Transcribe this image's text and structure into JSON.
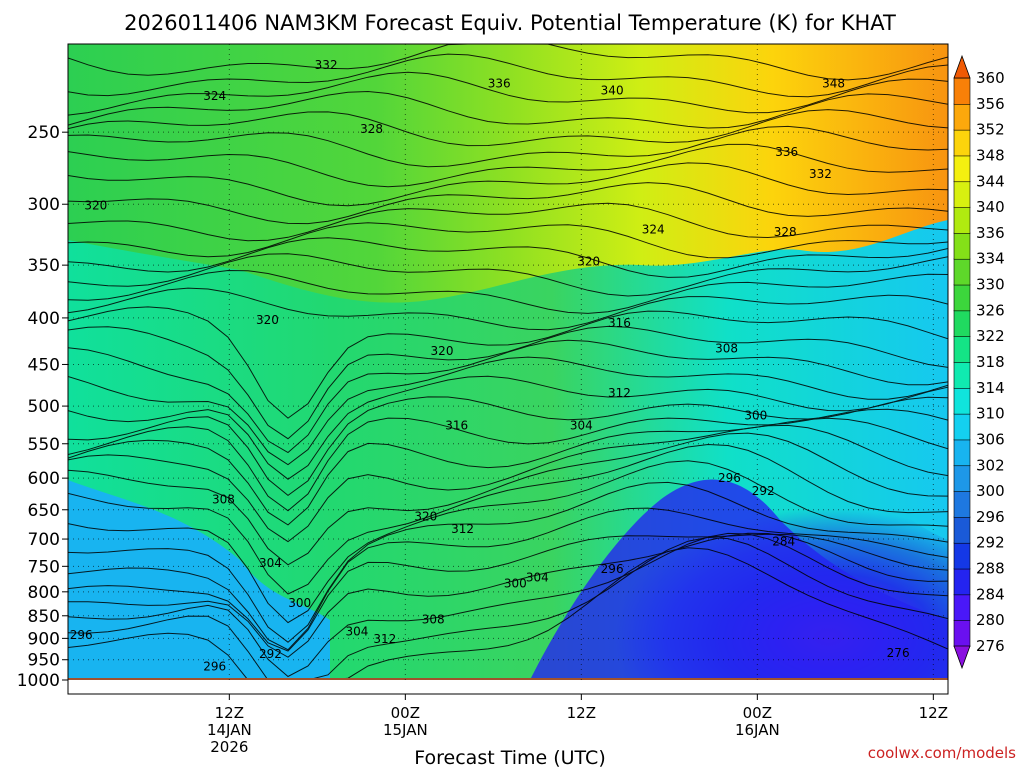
{
  "chart_data": {
    "type": "contour",
    "title": "2026011406 NAM3KM Forecast Equiv. Potential Temperature (K) for KHAT",
    "xlabel": "Forecast Time (UTC)",
    "ylabel": "",
    "credit": "coolwx.com/models",
    "y_axis": {
      "scale": "log",
      "direction": "inverted",
      "top_value": 200,
      "bottom_value": 1000,
      "ticks": [
        250,
        300,
        350,
        400,
        450,
        500,
        550,
        600,
        650,
        700,
        750,
        800,
        850,
        900,
        950,
        1000
      ],
      "tick_labels": [
        "250",
        "300",
        "350",
        "400",
        "450",
        "500",
        "550",
        "600",
        "650",
        "700",
        "750",
        "800",
        "850",
        "900",
        "950",
        "1000"
      ]
    },
    "x_axis": {
      "range_hours": [
        -5,
        55
      ],
      "ticks": [
        {
          "hour": 6,
          "lines": [
            "12Z",
            "14JAN",
            "2026"
          ]
        },
        {
          "hour": 18,
          "lines": [
            "00Z",
            "15JAN"
          ]
        },
        {
          "hour": 30,
          "lines": [
            "12Z"
          ]
        },
        {
          "hour": 42,
          "lines": [
            "00Z",
            "16JAN"
          ]
        },
        {
          "hour": 54,
          "lines": [
            "12Z"
          ]
        }
      ]
    },
    "colorbar": {
      "levels": [
        276,
        280,
        284,
        288,
        292,
        296,
        300,
        302,
        306,
        310,
        314,
        318,
        322,
        326,
        330,
        334,
        336,
        340,
        344,
        348,
        352,
        356,
        360
      ],
      "colors": [
        "#8a10e0",
        "#6a10f0",
        "#4a18f8",
        "#2424f0",
        "#1438e6",
        "#1a5ad8",
        "#1e78e0",
        "#1e98e8",
        "#18b4f0",
        "#14d0f0",
        "#10e4dc",
        "#10eab0",
        "#14e486",
        "#20da60",
        "#3cd63c",
        "#5ed82a",
        "#84e018",
        "#b0ea10",
        "#d8f010",
        "#f4f010",
        "#fcd40c",
        "#fca80c",
        "#f88008",
        "#f05a04"
      ]
    },
    "grid": true,
    "contour_labels": [
      {
        "v": "332",
        "h": 12.6,
        "p": 211
      },
      {
        "v": "324",
        "h": 5.0,
        "p": 228
      },
      {
        "v": "336",
        "h": 24.4,
        "p": 221
      },
      {
        "v": "340",
        "h": 32.1,
        "p": 225
      },
      {
        "v": "348",
        "h": 47.2,
        "p": 221
      },
      {
        "v": "328",
        "h": 15.7,
        "p": 248
      },
      {
        "v": "336",
        "h": 44.0,
        "p": 263
      },
      {
        "v": "332",
        "h": 46.3,
        "p": 278
      },
      {
        "v": "320",
        "h": -3.1,
        "p": 301
      },
      {
        "v": "324",
        "h": 34.9,
        "p": 320
      },
      {
        "v": "328",
        "h": 43.9,
        "p": 322
      },
      {
        "v": "320",
        "h": 30.5,
        "p": 347
      },
      {
        "v": "316",
        "h": 32.6,
        "p": 405
      },
      {
        "v": "320",
        "h": 8.6,
        "p": 402
      },
      {
        "v": "320",
        "h": 20.5,
        "p": 435
      },
      {
        "v": "308",
        "h": 39.9,
        "p": 432
      },
      {
        "v": "312",
        "h": 32.6,
        "p": 484
      },
      {
        "v": "300",
        "h": 41.9,
        "p": 512
      },
      {
        "v": "316",
        "h": 21.5,
        "p": 525
      },
      {
        "v": "304",
        "h": 30.0,
        "p": 525
      },
      {
        "v": "296",
        "h": 40.1,
        "p": 600
      },
      {
        "v": "292",
        "h": 42.4,
        "p": 620
      },
      {
        "v": "308",
        "h": 5.6,
        "p": 633
      },
      {
        "v": "320",
        "h": 19.4,
        "p": 661
      },
      {
        "v": "312",
        "h": 21.9,
        "p": 682
      },
      {
        "v": "284",
        "h": 43.8,
        "p": 704
      },
      {
        "v": "304",
        "h": 8.8,
        "p": 744
      },
      {
        "v": "296",
        "h": 32.1,
        "p": 755
      },
      {
        "v": "304",
        "h": 27.0,
        "p": 772
      },
      {
        "v": "300",
        "h": 25.5,
        "p": 783
      },
      {
        "v": "300",
        "h": 10.8,
        "p": 823
      },
      {
        "v": "308",
        "h": 19.9,
        "p": 858
      },
      {
        "v": "304",
        "h": 14.7,
        "p": 885
      },
      {
        "v": "312",
        "h": 16.6,
        "p": 902
      },
      {
        "v": "296",
        "h": -4.1,
        "p": 892
      },
      {
        "v": "292",
        "h": 8.8,
        "p": 936
      },
      {
        "v": "276",
        "h": 51.6,
        "p": 934
      },
      {
        "v": "296",
        "h": 5.0,
        "p": 966
      }
    ]
  }
}
